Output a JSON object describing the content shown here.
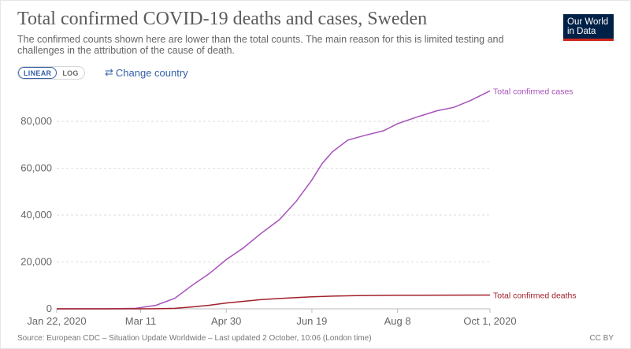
{
  "title": "Total confirmed COVID-19 deaths and cases, Sweden",
  "subtitle": "The confirmed counts shown here are lower than the total counts. The main reason for this is limited testing and challenges in the attribution of the cause of death.",
  "logo": {
    "line1": "Our World",
    "line2": "in Data",
    "bg_color": "#002147",
    "accent_color": "#ce261e"
  },
  "scale_toggle": {
    "linear_label": "LINEAR",
    "log_label": "LOG",
    "selected": "LINEAR"
  },
  "change_country": {
    "icon": "swap-arrows-icon",
    "label": "Change country"
  },
  "footer": {
    "source": "Source: European CDC – Situation Update Worldwide – Last updated 2 October, 10:06 (London time)",
    "license": "CC BY"
  },
  "chart_data": {
    "type": "line",
    "title": "Total confirmed COVID-19 deaths and cases, Sweden",
    "x_ticks": [
      "Jan 22, 2020",
      "Mar 11",
      "Apr 30",
      "Jun 19",
      "Aug 8",
      "Oct 1, 2020"
    ],
    "xlim": [
      "2020-01-22",
      "2020-10-01"
    ],
    "y_ticks": [
      "0",
      "20,000",
      "40,000",
      "60,000",
      "80,000"
    ],
    "ylim": [
      0,
      93000
    ],
    "grid": "horizontal-dashed",
    "legend": "inline-labels-right",
    "series": [
      {
        "name": "Total confirmed cases",
        "color": "#a652ba",
        "points": [
          [
            "2020-01-22",
            0
          ],
          [
            "2020-02-20",
            1
          ],
          [
            "2020-03-08",
            200
          ],
          [
            "2020-03-11",
            500
          ],
          [
            "2020-03-20",
            1500
          ],
          [
            "2020-03-31",
            4500
          ],
          [
            "2020-04-10",
            10000
          ],
          [
            "2020-04-20",
            15000
          ],
          [
            "2020-04-30",
            21000
          ],
          [
            "2020-05-10",
            26000
          ],
          [
            "2020-05-20",
            32000
          ],
          [
            "2020-05-31",
            38000
          ],
          [
            "2020-06-10",
            46000
          ],
          [
            "2020-06-19",
            55000
          ],
          [
            "2020-06-25",
            62000
          ],
          [
            "2020-07-01",
            67000
          ],
          [
            "2020-07-10",
            72000
          ],
          [
            "2020-07-20",
            74000
          ],
          [
            "2020-07-31",
            76000
          ],
          [
            "2020-08-08",
            79000
          ],
          [
            "2020-08-20",
            82000
          ],
          [
            "2020-08-31",
            84500
          ],
          [
            "2020-09-10",
            86000
          ],
          [
            "2020-09-20",
            89000
          ],
          [
            "2020-10-01",
            93000
          ]
        ]
      },
      {
        "name": "Total confirmed deaths",
        "color": "#a2202a",
        "points": [
          [
            "2020-01-22",
            0
          ],
          [
            "2020-03-11",
            1
          ],
          [
            "2020-03-20",
            20
          ],
          [
            "2020-03-31",
            200
          ],
          [
            "2020-04-10",
            800
          ],
          [
            "2020-04-20",
            1500
          ],
          [
            "2020-04-30",
            2500
          ],
          [
            "2020-05-10",
            3200
          ],
          [
            "2020-05-20",
            3900
          ],
          [
            "2020-05-31",
            4400
          ],
          [
            "2020-06-10",
            4800
          ],
          [
            "2020-06-19",
            5100
          ],
          [
            "2020-07-01",
            5400
          ],
          [
            "2020-07-15",
            5600
          ],
          [
            "2020-08-01",
            5750
          ],
          [
            "2020-08-20",
            5800
          ],
          [
            "2020-09-10",
            5850
          ],
          [
            "2020-10-01",
            5880
          ]
        ]
      }
    ]
  }
}
